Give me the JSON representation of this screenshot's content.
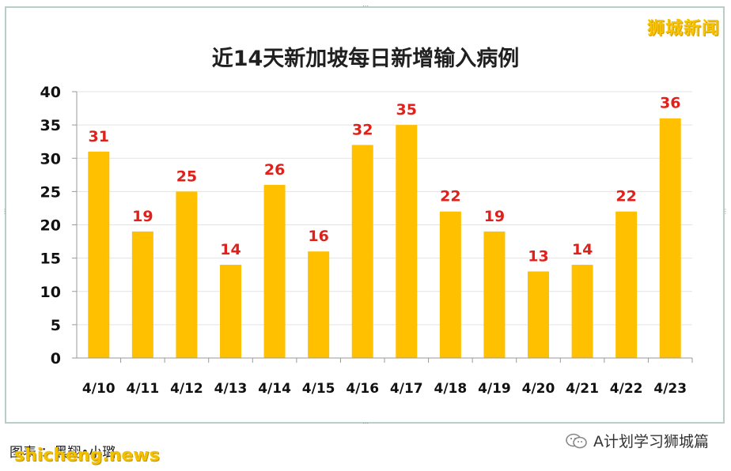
{
  "chart_data": {
    "type": "bar",
    "title": "近14天新加坡每日新增输入病例",
    "categories": [
      "4/10",
      "4/11",
      "4/12",
      "4/13",
      "4/14",
      "4/15",
      "4/16",
      "4/17",
      "4/18",
      "4/19",
      "4/20",
      "4/21",
      "4/22",
      "4/23"
    ],
    "values": [
      31,
      19,
      25,
      14,
      26,
      16,
      32,
      35,
      22,
      19,
      13,
      14,
      22,
      36
    ],
    "ylim": [
      0,
      40
    ],
    "yticks": [
      0,
      5,
      10,
      15,
      20,
      25,
      30,
      35,
      40
    ],
    "grid": true,
    "bar_color": "#ffc000",
    "label_color": "#e0201a"
  },
  "watermark_top": "狮城新闻",
  "credit": "图表 ：黑翔•小璐",
  "watermark_bottom": "shicheng.news",
  "wechat_account": "A计划学习狮城篇"
}
